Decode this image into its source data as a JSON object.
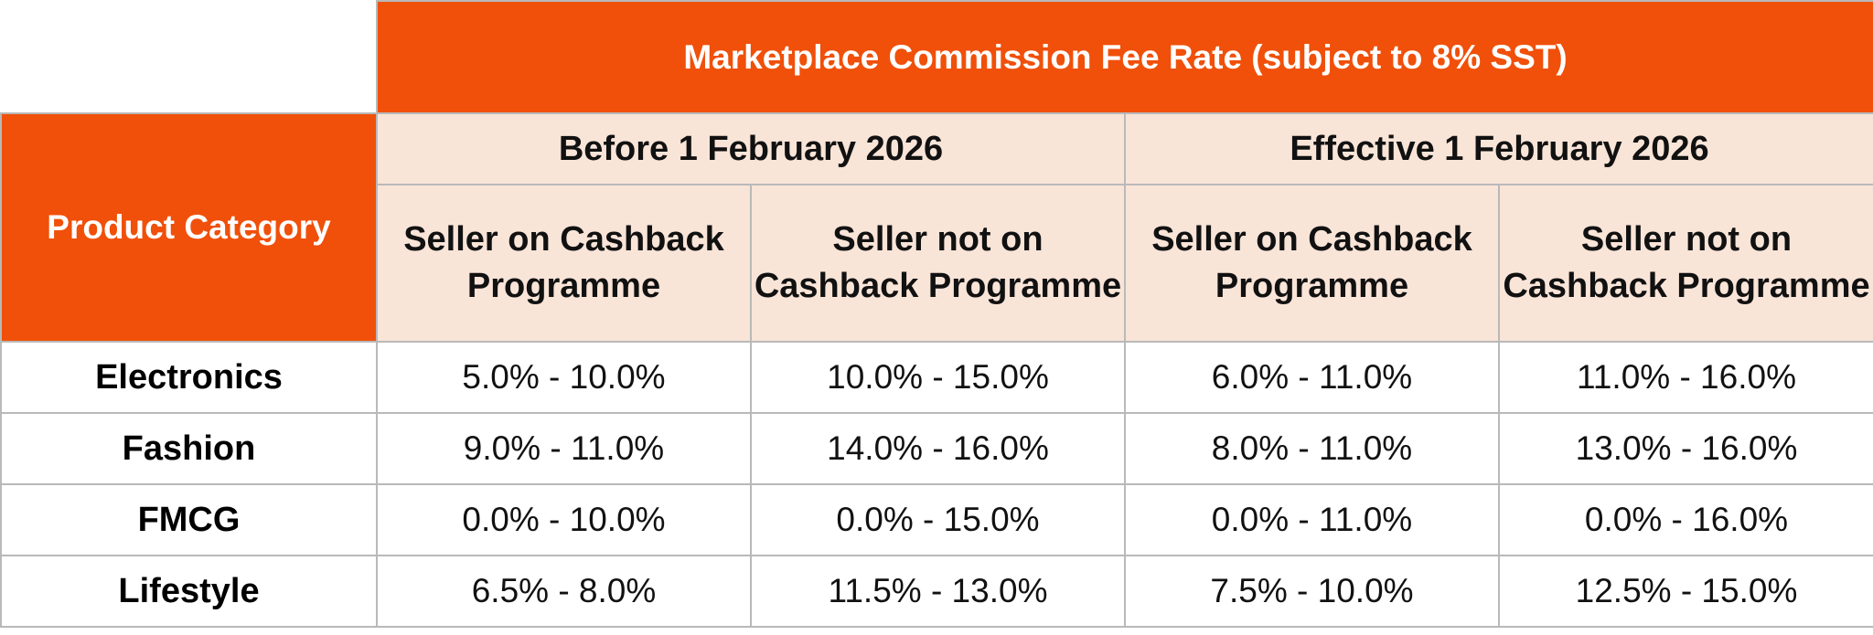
{
  "table": {
    "title": "Marketplace Commission Fee Rate (subject to 8% SST)",
    "category_header": "Product Category",
    "periods": [
      {
        "label": "Before 1 February 2026",
        "columns": [
          "Seller on Cashback Programme",
          "Seller not on Cashback Programme"
        ]
      },
      {
        "label": "Effective 1 February 2026",
        "columns": [
          "Seller on Cashback Programme",
          "Seller not on Cashback Programme"
        ]
      }
    ],
    "rows": [
      {
        "category": "Electronics",
        "values": [
          "5.0% - 10.0%",
          "10.0% - 15.0%",
          "6.0% - 11.0%",
          "11.0% - 16.0%"
        ]
      },
      {
        "category": "Fashion",
        "values": [
          "9.0% - 11.0%",
          "14.0% - 16.0%",
          "8.0% - 11.0%",
          "13.0% - 16.0%"
        ]
      },
      {
        "category": "FMCG",
        "values": [
          "0.0% - 10.0%",
          "0.0% - 15.0%",
          "0.0% - 11.0%",
          "0.0% - 16.0%"
        ]
      },
      {
        "category": "Lifestyle",
        "values": [
          "6.5% - 8.0%",
          "11.5% - 13.0%",
          "7.5% - 10.0%",
          "12.5% - 15.0%"
        ]
      }
    ]
  },
  "colors": {
    "header_orange": "#f0500a",
    "subheader_peach": "#f9e4d8",
    "border_gray": "#b9b9b9"
  }
}
